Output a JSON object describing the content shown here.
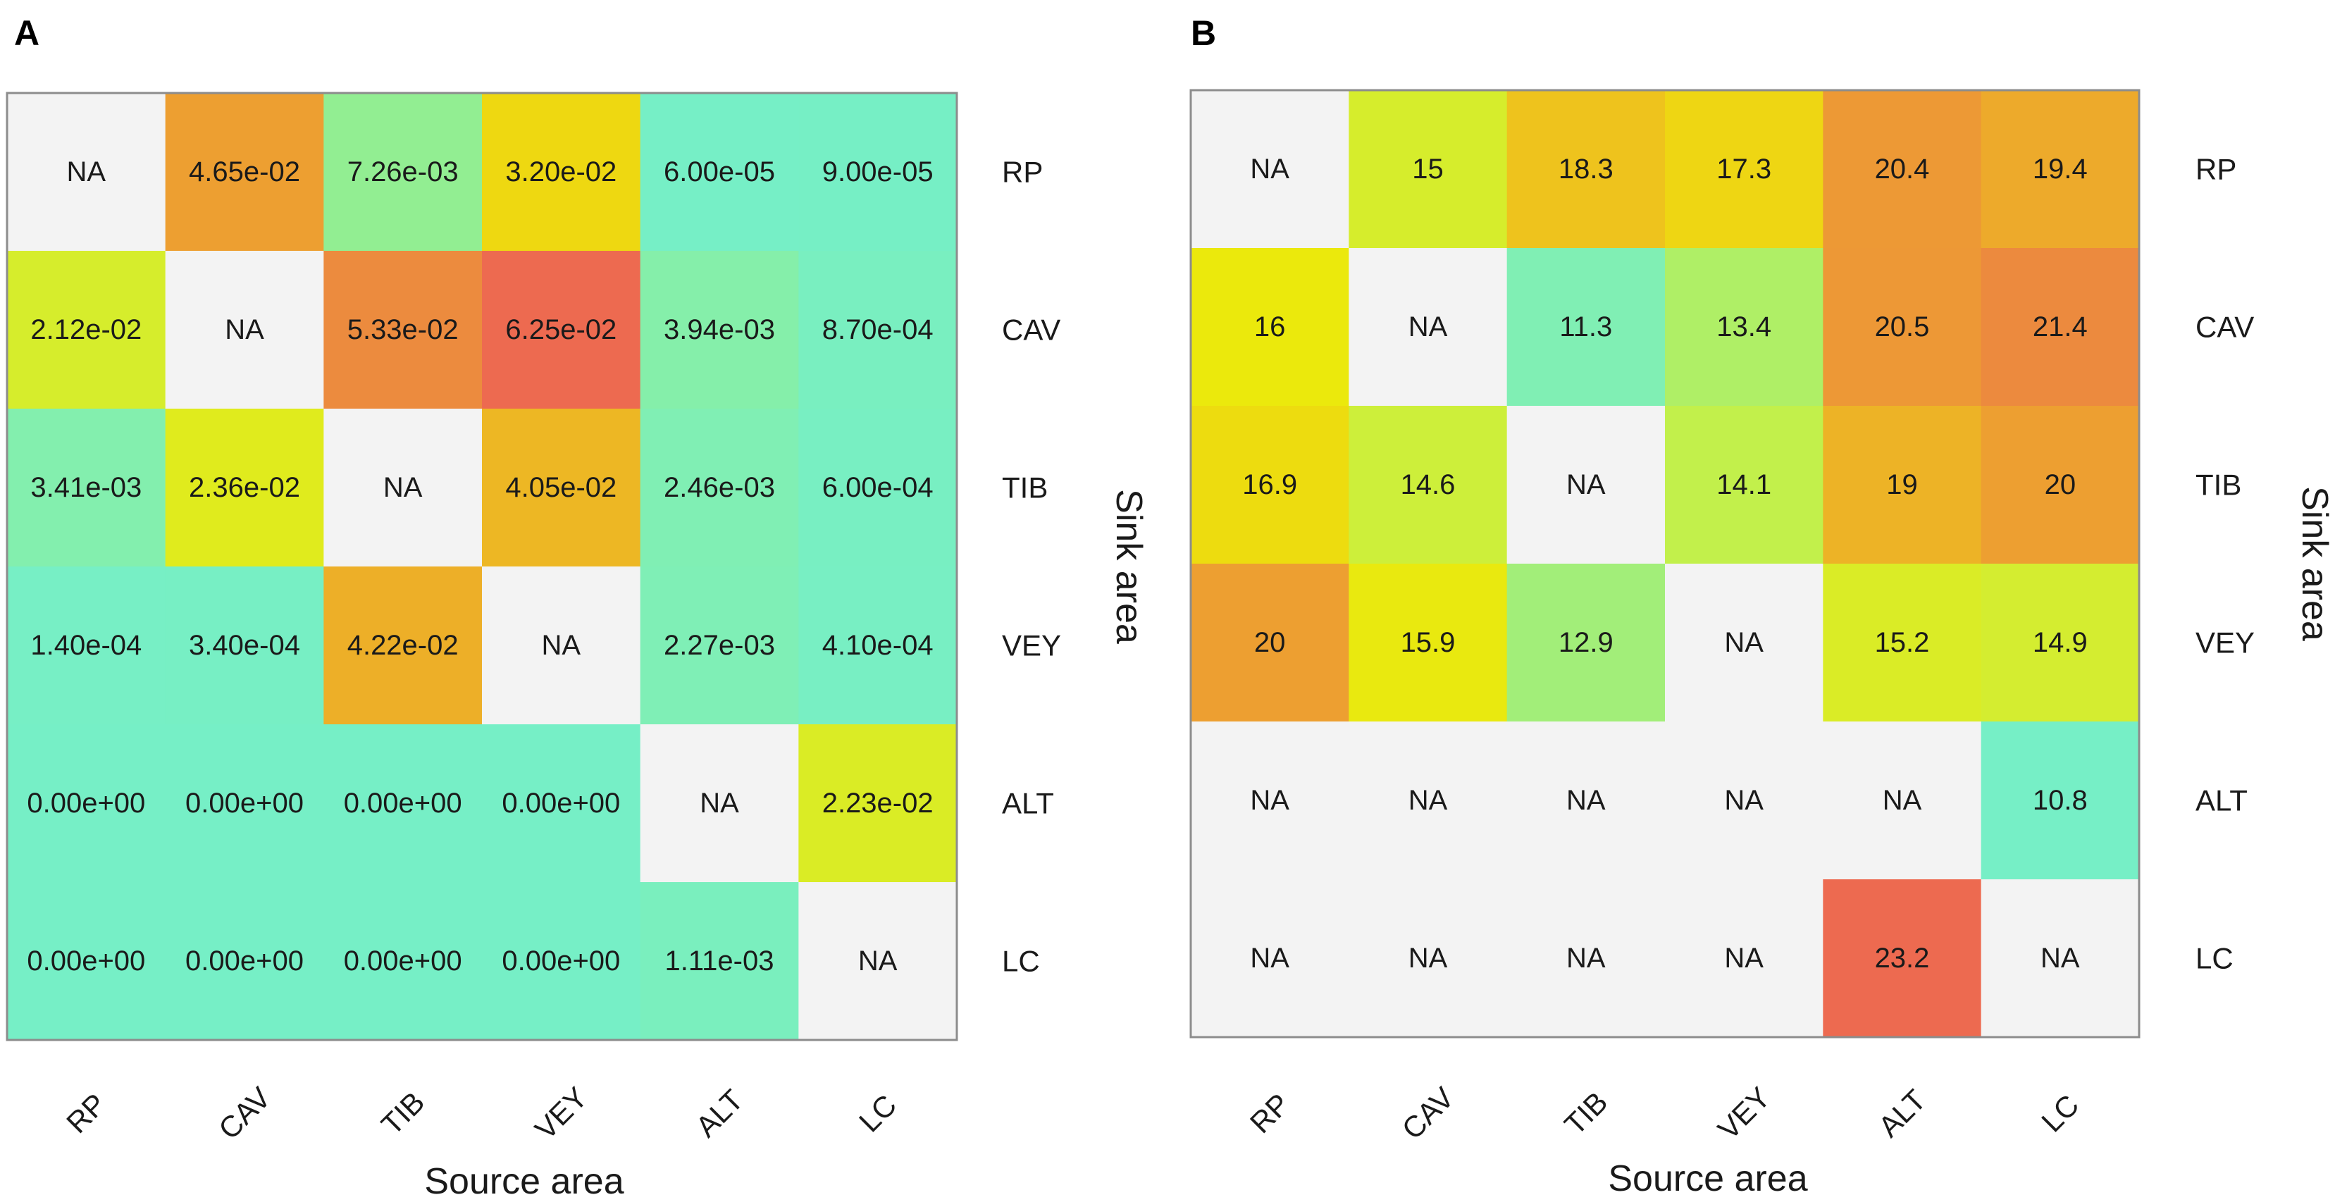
{
  "chart_data": [
    {
      "type": "heatmap",
      "panel_label": "A",
      "xlabel": "Source area",
      "ylabel": "Sink area",
      "x_categories": [
        "RP",
        "CAV",
        "TIB",
        "VEY",
        "ALT",
        "LC"
      ],
      "y_categories": [
        "RP",
        "CAV",
        "TIB",
        "VEY",
        "ALT",
        "LC"
      ],
      "cells": [
        [
          "NA",
          "4.65e-02",
          "7.26e-03",
          "3.20e-02",
          "6.00e-05",
          "9.00e-05"
        ],
        [
          "2.12e-02",
          "NA",
          "5.33e-02",
          "6.25e-02",
          "3.94e-03",
          "8.70e-04"
        ],
        [
          "3.41e-03",
          "2.36e-02",
          "NA",
          "4.05e-02",
          "2.46e-03",
          "6.00e-04"
        ],
        [
          "1.40e-04",
          "3.40e-04",
          "4.22e-02",
          "NA",
          "2.27e-03",
          "4.10e-04"
        ],
        [
          "0.00e+00",
          "0.00e+00",
          "0.00e+00",
          "0.00e+00",
          "NA",
          "2.23e-02"
        ],
        [
          "0.00e+00",
          "0.00e+00",
          "0.00e+00",
          "0.00e+00",
          "1.11e-03",
          "NA"
        ]
      ],
      "scale": {
        "min": 0,
        "max": 0.0625
      }
    },
    {
      "type": "heatmap",
      "panel_label": "B",
      "xlabel": "Source area",
      "ylabel": "Sink area",
      "x_categories": [
        "RP",
        "CAV",
        "TIB",
        "VEY",
        "ALT",
        "LC"
      ],
      "y_categories": [
        "RP",
        "CAV",
        "TIB",
        "VEY",
        "ALT",
        "LC"
      ],
      "cells": [
        [
          "NA",
          "15",
          "18.3",
          "17.3",
          "20.4",
          "19.4"
        ],
        [
          "16",
          "NA",
          "11.3",
          "13.4",
          "20.5",
          "21.4"
        ],
        [
          "16.9",
          "14.6",
          "NA",
          "14.1",
          "19",
          "20"
        ],
        [
          "20",
          "15.9",
          "12.9",
          "NA",
          "15.2",
          "14.9"
        ],
        [
          "NA",
          "NA",
          "NA",
          "NA",
          "NA",
          "10.8"
        ],
        [
          "NA",
          "NA",
          "NA",
          "NA",
          "23.2",
          "NA"
        ]
      ],
      "scale": {
        "min": 10.8,
        "max": 23.2
      }
    }
  ],
  "colors": {
    "na": "#f3f3f3",
    "frame": "#8c8c8c",
    "gradient": [
      "#76efc6",
      "#99ee86",
      "#c8f042",
      "#ede808",
      "#eecd18",
      "#eda42e",
      "#ec8a3e",
      "#ed6a50"
    ]
  }
}
